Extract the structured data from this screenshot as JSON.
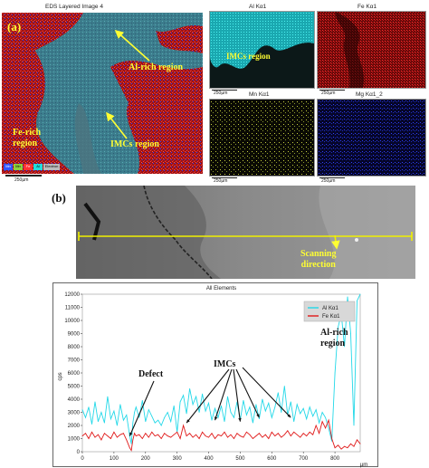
{
  "panel_a": {
    "letter": "(a)",
    "main_title": "EDS Layered Image 4",
    "main_scale": "250µm",
    "labels": {
      "al_rich": "Al-rich region",
      "fe_rich": "Fe-rich\nregion",
      "imcs": "IMCs region"
    },
    "legend_items": [
      "Mn",
      "Mn",
      "Fe",
      "Al",
      "Electron"
    ],
    "legend_colors": [
      "#3355ff",
      "#ffff44",
      "#ff3333",
      "#22dddd",
      "#bbbbbb"
    ],
    "maps": [
      {
        "title": "Al Kα1",
        "scale": "250µm",
        "color": "#22e0e0",
        "label": "IMCs region"
      },
      {
        "title": "Fe Kα1",
        "scale": "250µm",
        "color": "#e02020"
      },
      {
        "title": "Mn Kα1",
        "scale": "250µm",
        "color": "#d8e040"
      },
      {
        "title": "Mg Kα1_2",
        "scale": "250µm",
        "color": "#3040ff"
      }
    ]
  },
  "panel_b": {
    "letter": "(b)",
    "scan_label": "Scanning\ndirection",
    "chart_title": "All Elements",
    "annotations": {
      "defect": "Defect",
      "imcs": "IMCs",
      "al_rich": "Al-rich\nregion"
    }
  },
  "chart_data": {
    "type": "line",
    "title": "All Elements",
    "xlabel": "µm",
    "ylabel": "cps",
    "xlim": [
      0,
      880
    ],
    "ylim": [
      0,
      12000
    ],
    "x_ticks": [
      0,
      100,
      200,
      300,
      400,
      500,
      600,
      700,
      800
    ],
    "y_ticks": [
      0,
      1000,
      2000,
      3000,
      4000,
      5000,
      6000,
      7000,
      8000,
      9000,
      10000,
      11000,
      12000
    ],
    "legend_position": "top-right",
    "series": [
      {
        "name": "Al Kα1",
        "color": "#22d8e8",
        "x": [
          0,
          10,
          20,
          30,
          40,
          50,
          60,
          70,
          80,
          90,
          100,
          110,
          120,
          130,
          140,
          150,
          155,
          160,
          165,
          170,
          180,
          190,
          200,
          210,
          220,
          230,
          240,
          250,
          260,
          270,
          280,
          290,
          300,
          310,
          320,
          330,
          340,
          350,
          360,
          370,
          380,
          390,
          400,
          410,
          420,
          430,
          440,
          450,
          460,
          470,
          480,
          490,
          500,
          510,
          520,
          530,
          540,
          550,
          560,
          570,
          580,
          590,
          600,
          610,
          620,
          630,
          640,
          650,
          660,
          670,
          680,
          690,
          700,
          710,
          720,
          730,
          740,
          750,
          760,
          770,
          780,
          790,
          800,
          810,
          820,
          830,
          840,
          850,
          860,
          870,
          880
        ],
        "values": [
          3200,
          2600,
          3400,
          2100,
          3800,
          2300,
          3000,
          2200,
          4200,
          2500,
          3100,
          2000,
          3600,
          2400,
          2800,
          1200,
          600,
          2200,
          3000,
          3400,
          2600,
          3900,
          2300,
          3200,
          2700,
          2200,
          2400,
          2000,
          2600,
          3000,
          2300,
          3500,
          1500,
          3800,
          4300,
          2900,
          4800,
          3600,
          4200,
          3000,
          4400,
          3100,
          3700,
          2400,
          3300,
          2600,
          3500,
          2300,
          4200,
          3000,
          2600,
          3800,
          2400,
          3900,
          2800,
          3400,
          2200,
          3600,
          2500,
          4000,
          3100,
          3700,
          2600,
          3400,
          4500,
          3000,
          5000,
          2800,
          3800,
          2300,
          3600,
          2900,
          3300,
          2500,
          3400,
          2700,
          3200,
          2200,
          3000,
          2600,
          1800,
          800,
          6000,
          9500,
          10500,
          8000,
          11800,
          9000,
          2000,
          11500,
          12000
        ]
      },
      {
        "name": "Fe Kα1",
        "color": "#e01818",
        "x": [
          0,
          10,
          20,
          30,
          40,
          50,
          60,
          70,
          80,
          90,
          100,
          110,
          120,
          130,
          140,
          150,
          155,
          160,
          165,
          170,
          180,
          190,
          200,
          210,
          220,
          230,
          240,
          250,
          260,
          270,
          280,
          290,
          300,
          310,
          320,
          330,
          340,
          350,
          360,
          370,
          380,
          390,
          400,
          410,
          420,
          430,
          440,
          450,
          460,
          470,
          480,
          490,
          500,
          510,
          520,
          530,
          540,
          550,
          560,
          570,
          580,
          590,
          600,
          610,
          620,
          630,
          640,
          650,
          660,
          670,
          680,
          690,
          700,
          710,
          720,
          730,
          740,
          750,
          760,
          770,
          780,
          790,
          800,
          810,
          820,
          830,
          840,
          850,
          860,
          870,
          880
        ],
        "values": [
          1200,
          1400,
          1000,
          1500,
          1100,
          1300,
          900,
          1400,
          1200,
          1000,
          1500,
          1100,
          1300,
          1400,
          900,
          300,
          100,
          900,
          1400,
          1200,
          1300,
          1000,
          1400,
          1100,
          1500,
          1200,
          1300,
          1000,
          1400,
          1200,
          1100,
          1300,
          1500,
          1000,
          2000,
          1200,
          1400,
          1100,
          1300,
          1000,
          1500,
          1200,
          1100,
          1400,
          1000,
          1300,
          1200,
          1500,
          1100,
          1300,
          1000,
          1400,
          1200,
          1100,
          1500,
          1300,
          1000,
          1200,
          1400,
          1100,
          1300,
          1000,
          1500,
          1200,
          1400,
          1100,
          1300,
          1600,
          1200,
          1500,
          1300,
          1100,
          1400,
          1200,
          1500,
          1300,
          2000,
          1400,
          2300,
          1800,
          2400,
          1000,
          300,
          500,
          200,
          400,
          300,
          600,
          400,
          900,
          600
        ]
      }
    ]
  }
}
